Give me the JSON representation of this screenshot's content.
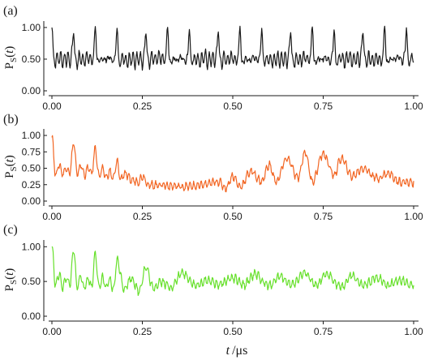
{
  "chart_data": [
    {
      "type": "line",
      "panel_label": "(a)",
      "ylabel_main": "P",
      "ylabel_sub": "S",
      "ylabel_open": "(",
      "ylabel_var": "t",
      "ylabel_close": ")",
      "x_ticks": [
        "0.00",
        "0.25",
        "0.50",
        "0.75",
        "1.00"
      ],
      "y_ticks": [
        "0.00",
        "0.50",
        "1.00"
      ],
      "xlim": [
        0,
        1
      ],
      "ylim": [
        0,
        1.05
      ],
      "grid": false,
      "color": "#1a1a1a",
      "series": [
        {
          "values_desc": "oscillation",
          "x": [
            0.0,
            0.005,
            0.01,
            0.015,
            0.02,
            0.025,
            0.03,
            0.035,
            0.04,
            0.045,
            0.05,
            0.055,
            0.06,
            0.065,
            0.07,
            0.075,
            0.08,
            0.085,
            0.09,
            0.095,
            0.1,
            0.105,
            0.11,
            0.115,
            0.12,
            0.125,
            0.13,
            0.135,
            0.14,
            0.145,
            0.15,
            0.155,
            0.16,
            0.165,
            0.17,
            0.175,
            0.18,
            0.185,
            0.19,
            0.195,
            0.2
          ],
          "y": [
            1.0,
            0.55,
            0.4,
            0.58,
            0.45,
            0.6,
            0.4,
            0.56,
            0.44,
            0.58,
            0.4,
            0.62,
            0.95,
            0.5,
            0.4,
            0.58,
            0.45,
            0.55,
            0.42,
            0.6,
            0.45,
            0.58,
            0.4,
            0.6,
            1.0,
            0.5,
            0.4,
            0.58,
            0.44,
            0.56,
            0.42,
            0.6,
            0.45,
            0.55,
            0.4,
            0.62,
            0.95,
            0.5,
            0.42,
            0.58,
            0.45
          ]
        }
      ]
    },
    {
      "type": "line",
      "panel_label": "(b)",
      "ylabel_main": "P",
      "ylabel_sub": "S",
      "ylabel_open": "(",
      "ylabel_var": "t",
      "ylabel_close": ")",
      "x_ticks": [
        "0.00",
        "0.25",
        "0.50",
        "0.75",
        "1.00"
      ],
      "y_ticks": [
        "0.00",
        "0.25",
        "0.50",
        "0.75",
        "1.00"
      ],
      "xlim": [
        0,
        1
      ],
      "ylim": [
        0,
        1.05
      ],
      "grid": false,
      "color": "#f26522",
      "series": [
        {
          "x": [
            0.0,
            0.01,
            0.02,
            0.03,
            0.04,
            0.05,
            0.06,
            0.07,
            0.08,
            0.09,
            0.1,
            0.11,
            0.12,
            0.13,
            0.14,
            0.15,
            0.16,
            0.17,
            0.18,
            0.19,
            0.2,
            0.22,
            0.24,
            0.25,
            0.27,
            0.3,
            0.33,
            0.36,
            0.4,
            0.43,
            0.46,
            0.48,
            0.5,
            0.52,
            0.55,
            0.58,
            0.6,
            0.62,
            0.65,
            0.68,
            0.7,
            0.72,
            0.75,
            0.78,
            0.8,
            0.83,
            0.86,
            0.9,
            0.93,
            0.96,
            1.0
          ],
          "y": [
            1.0,
            0.4,
            0.55,
            0.42,
            0.5,
            0.45,
            0.9,
            0.4,
            0.55,
            0.4,
            0.5,
            0.42,
            0.8,
            0.38,
            0.48,
            0.36,
            0.45,
            0.34,
            0.6,
            0.33,
            0.42,
            0.32,
            0.3,
            0.38,
            0.24,
            0.25,
            0.23,
            0.22,
            0.23,
            0.26,
            0.3,
            0.2,
            0.38,
            0.22,
            0.45,
            0.3,
            0.55,
            0.3,
            0.65,
            0.35,
            0.75,
            0.3,
            0.72,
            0.4,
            0.65,
            0.38,
            0.5,
            0.35,
            0.42,
            0.3,
            0.28
          ]
        }
      ]
    },
    {
      "type": "line",
      "panel_label": "(c)",
      "ylabel_main": "P",
      "ylabel_sub": "S",
      "ylabel_open": "(",
      "ylabel_var": "t",
      "ylabel_close": ")",
      "x_ticks": [
        "0.00",
        "0.25",
        "0.50",
        "0.75",
        "1.00"
      ],
      "y_ticks": [
        "0.00",
        "0.50",
        "1.00"
      ],
      "xlim": [
        0,
        1
      ],
      "ylim": [
        0,
        1.05
      ],
      "grid": false,
      "color": "#66e02a",
      "series": [
        {
          "x": [
            0.0,
            0.01,
            0.02,
            0.03,
            0.04,
            0.05,
            0.06,
            0.07,
            0.08,
            0.09,
            0.1,
            0.11,
            0.12,
            0.13,
            0.14,
            0.15,
            0.16,
            0.17,
            0.18,
            0.2,
            0.22,
            0.24,
            0.26,
            0.28,
            0.3,
            0.33,
            0.36,
            0.4,
            0.43,
            0.46,
            0.5,
            0.53,
            0.56,
            0.6,
            0.63,
            0.66,
            0.7,
            0.73,
            0.76,
            0.8,
            0.83,
            0.86,
            0.9,
            0.93,
            0.96,
            1.0
          ],
          "y": [
            1.0,
            0.45,
            0.6,
            0.42,
            0.55,
            0.45,
            0.95,
            0.42,
            0.58,
            0.4,
            0.55,
            0.42,
            0.92,
            0.4,
            0.56,
            0.4,
            0.52,
            0.38,
            0.8,
            0.4,
            0.55,
            0.36,
            0.7,
            0.4,
            0.5,
            0.42,
            0.62,
            0.44,
            0.52,
            0.46,
            0.55,
            0.45,
            0.6,
            0.44,
            0.58,
            0.45,
            0.62,
            0.44,
            0.6,
            0.42,
            0.58,
            0.44,
            0.55,
            0.45,
            0.52,
            0.45
          ]
        }
      ]
    }
  ],
  "x_axis_label_var": "t",
  "x_axis_label_unit": "/μs"
}
